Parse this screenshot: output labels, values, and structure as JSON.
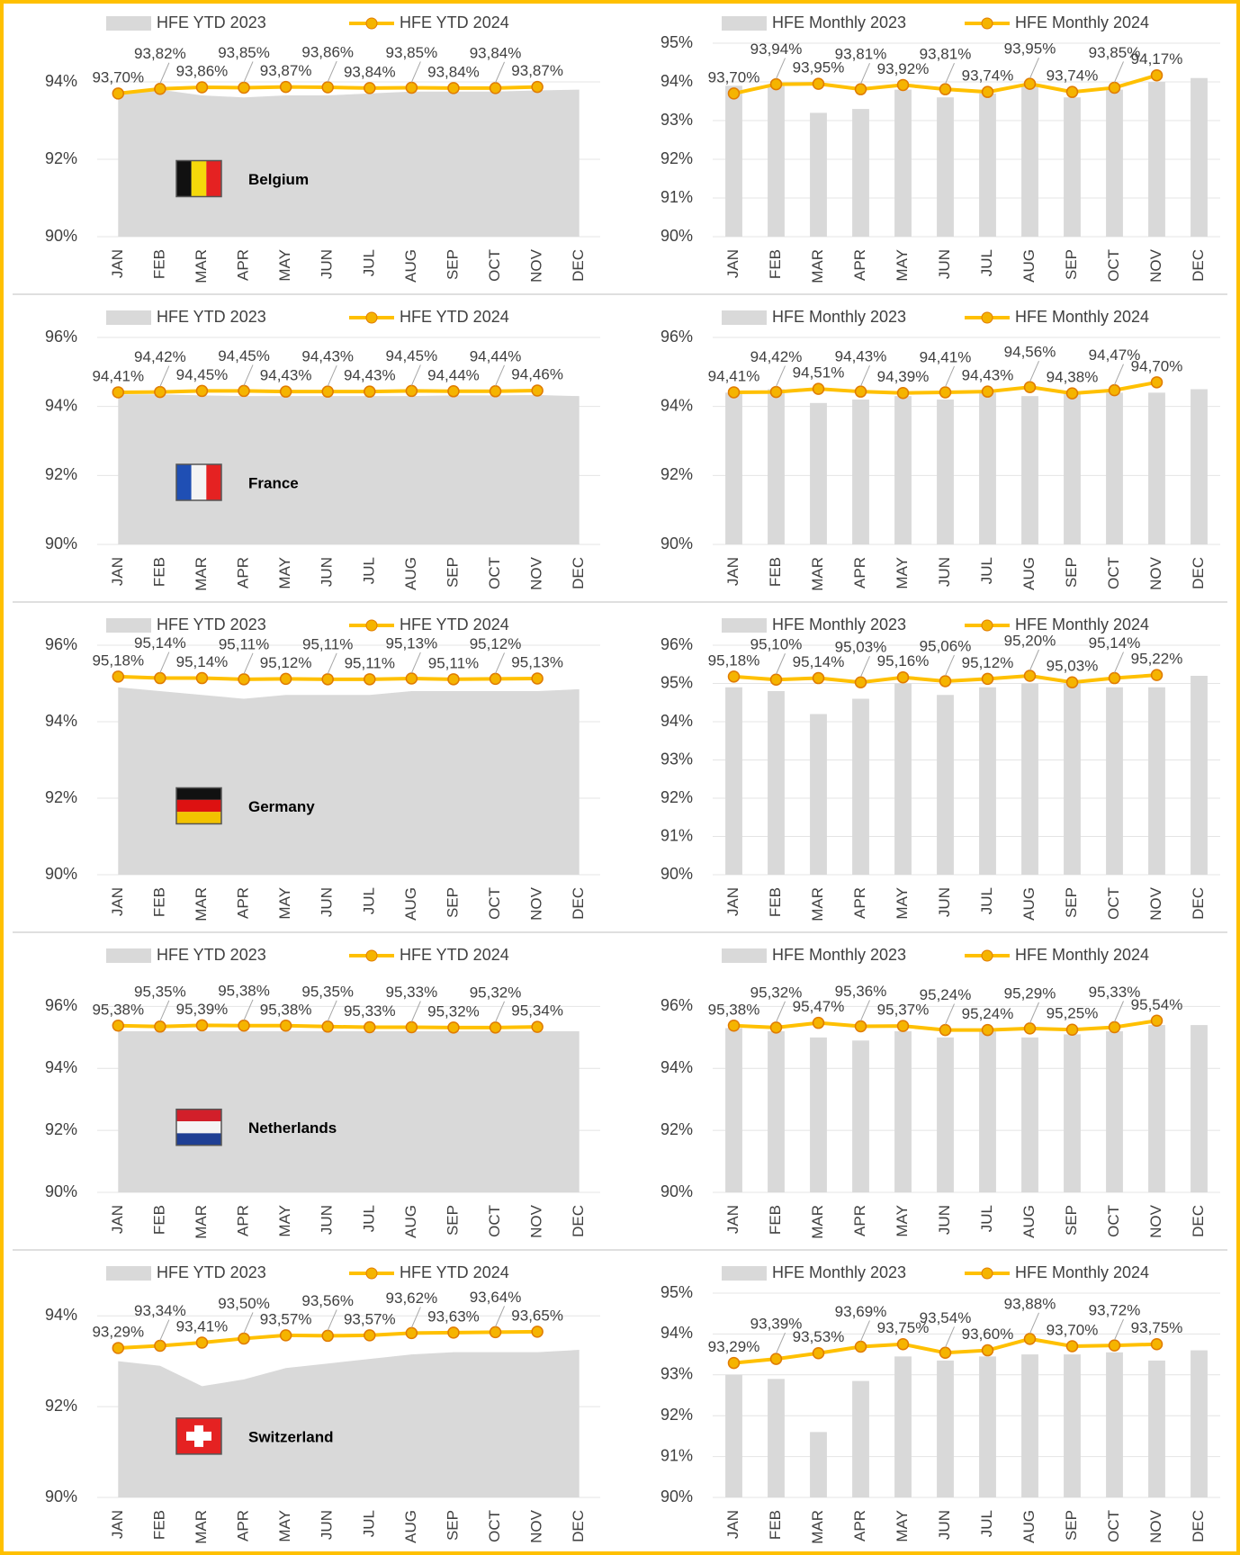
{
  "chart_data": [
    {
      "type": "combo",
      "annotation": "Belgium",
      "categories": [
        "JAN",
        "FEB",
        "MAR",
        "APR",
        "MAY",
        "JUN",
        "JUL",
        "AUG",
        "SEP",
        "OCT",
        "NOV",
        "DEC"
      ],
      "series": [
        {
          "name": "HFE YTD 2023",
          "type": "area",
          "color": "#d9d9d9",
          "values": [
            93.7,
            93.8,
            93.65,
            93.6,
            93.65,
            93.65,
            93.7,
            93.75,
            93.75,
            93.75,
            93.78,
            93.8
          ]
        },
        {
          "name": "HFE YTD 2024",
          "type": "line",
          "color": "#ffc000",
          "values": [
            93.7,
            93.82,
            93.86,
            93.85,
            93.87,
            93.86,
            93.84,
            93.85,
            93.84,
            93.84,
            93.87,
            null
          ],
          "value_labels": [
            "93,70%",
            "93,82%",
            "93,86%",
            "93,85%",
            "93,87%",
            "93,86%",
            "93,84%",
            "93,85%",
            "93,84%",
            "93,84%",
            "93,87%",
            null
          ]
        }
      ],
      "ylim": [
        90,
        95
      ],
      "yticks": [
        {
          "value": 90,
          "label": "90%"
        },
        {
          "value": 92,
          "label": "92%"
        },
        {
          "value": 94,
          "label": "94%"
        }
      ],
      "grid": true
    },
    {
      "type": "combo",
      "categories": [
        "JAN",
        "FEB",
        "MAR",
        "APR",
        "MAY",
        "JUN",
        "JUL",
        "AUG",
        "SEP",
        "OCT",
        "NOV",
        "DEC"
      ],
      "series": [
        {
          "name": "HFE Monthly 2023",
          "type": "bar",
          "color": "#d9d9d9",
          "values": [
            93.9,
            93.9,
            93.2,
            93.3,
            93.8,
            93.6,
            93.7,
            93.9,
            93.6,
            93.8,
            94.0,
            94.1
          ]
        },
        {
          "name": "HFE Monthly 2024",
          "type": "line",
          "color": "#ffc000",
          "values": [
            93.7,
            93.94,
            93.95,
            93.81,
            93.92,
            93.81,
            93.74,
            93.95,
            93.74,
            93.85,
            94.17,
            null
          ],
          "value_labels": [
            "93,70%",
            "93,94%",
            "93,95%",
            "93,81%",
            "93,92%",
            "93,81%",
            "93,74%",
            "93,95%",
            "93,74%",
            "93,85%",
            "94,17%",
            null
          ]
        }
      ],
      "ylim": [
        90,
        95
      ],
      "yticks": [
        {
          "value": 90,
          "label": "90%"
        },
        {
          "value": 91,
          "label": "91%"
        },
        {
          "value": 92,
          "label": "92%"
        },
        {
          "value": 93,
          "label": "93%"
        },
        {
          "value": 94,
          "label": "94%"
        },
        {
          "value": 95,
          "label": "95%"
        }
      ],
      "grid": true
    },
    {
      "type": "combo",
      "annotation": "France",
      "categories": [
        "JAN",
        "FEB",
        "MAR",
        "APR",
        "MAY",
        "JUN",
        "JUL",
        "AUG",
        "SEP",
        "OCT",
        "NOV",
        "DEC"
      ],
      "series": [
        {
          "name": "HFE YTD 2023",
          "type": "area",
          "color": "#d9d9d9",
          "values": [
            94.35,
            94.35,
            94.32,
            94.3,
            94.3,
            94.3,
            94.3,
            94.3,
            94.32,
            94.32,
            94.33,
            94.3
          ]
        },
        {
          "name": "HFE YTD 2024",
          "type": "line",
          "color": "#ffc000",
          "values": [
            94.41,
            94.42,
            94.45,
            94.45,
            94.43,
            94.43,
            94.43,
            94.45,
            94.44,
            94.44,
            94.46,
            null
          ],
          "value_labels": [
            "94,41%",
            "94,42%",
            "94,45%",
            "94,45%",
            "94,43%",
            "94,43%",
            "94,43%",
            "94,45%",
            "94,44%",
            "94,44%",
            "94,46%",
            null
          ]
        }
      ],
      "ylim": [
        90,
        96
      ],
      "yticks": [
        {
          "value": 90,
          "label": "90%"
        },
        {
          "value": 92,
          "label": "92%"
        },
        {
          "value": 94,
          "label": "94%"
        },
        {
          "value": 96,
          "label": "96%"
        }
      ],
      "grid": true
    },
    {
      "type": "combo",
      "categories": [
        "JAN",
        "FEB",
        "MAR",
        "APR",
        "MAY",
        "JUN",
        "JUL",
        "AUG",
        "SEP",
        "OCT",
        "NOV",
        "DEC"
      ],
      "series": [
        {
          "name": "HFE Monthly 2023",
          "type": "bar",
          "color": "#d9d9d9",
          "values": [
            94.4,
            94.5,
            94.1,
            94.2,
            94.3,
            94.2,
            94.4,
            94.3,
            94.4,
            94.4,
            94.4,
            94.5
          ]
        },
        {
          "name": "HFE Monthly 2024",
          "type": "line",
          "color": "#ffc000",
          "values": [
            94.41,
            94.42,
            94.51,
            94.43,
            94.39,
            94.41,
            94.43,
            94.56,
            94.38,
            94.47,
            94.7,
            null
          ],
          "value_labels": [
            "94,41%",
            "94,42%",
            "94,51%",
            "94,43%",
            "94,39%",
            "94,41%",
            "94,43%",
            "94,56%",
            "94,38%",
            "94,47%",
            "94,70%",
            null
          ]
        }
      ],
      "ylim": [
        90,
        96
      ],
      "yticks": [
        {
          "value": 90,
          "label": "90%"
        },
        {
          "value": 92,
          "label": "92%"
        },
        {
          "value": 94,
          "label": "94%"
        },
        {
          "value": 96,
          "label": "96%"
        }
      ],
      "grid": true
    },
    {
      "type": "combo",
      "annotation": "Germany",
      "categories": [
        "JAN",
        "FEB",
        "MAR",
        "APR",
        "MAY",
        "JUN",
        "JUL",
        "AUG",
        "SEP",
        "OCT",
        "NOV",
        "DEC"
      ],
      "series": [
        {
          "name": "HFE YTD 2023",
          "type": "area",
          "color": "#d9d9d9",
          "values": [
            94.9,
            94.8,
            94.7,
            94.6,
            94.7,
            94.7,
            94.7,
            94.8,
            94.8,
            94.8,
            94.8,
            94.85
          ]
        },
        {
          "name": "HFE YTD 2024",
          "type": "line",
          "color": "#ffc000",
          "values": [
            95.18,
            95.14,
            95.14,
            95.11,
            95.12,
            95.11,
            95.11,
            95.13,
            95.11,
            95.12,
            95.13,
            null
          ],
          "value_labels": [
            "95,18%",
            "95,14%",
            "95,14%",
            "95,11%",
            "95,12%",
            "95,11%",
            "95,11%",
            "95,13%",
            "95,11%",
            "95,12%",
            "95,13%",
            null
          ]
        }
      ],
      "ylim": [
        90,
        96
      ],
      "yticks": [
        {
          "value": 90,
          "label": "90%"
        },
        {
          "value": 92,
          "label": "92%"
        },
        {
          "value": 94,
          "label": "94%"
        },
        {
          "value": 96,
          "label": "96%"
        }
      ],
      "grid": true
    },
    {
      "type": "combo",
      "categories": [
        "JAN",
        "FEB",
        "MAR",
        "APR",
        "MAY",
        "JUN",
        "JUL",
        "AUG",
        "SEP",
        "OCT",
        "NOV",
        "DEC"
      ],
      "series": [
        {
          "name": "HFE Monthly 2023",
          "type": "bar",
          "color": "#d9d9d9",
          "values": [
            94.9,
            94.8,
            94.2,
            94.6,
            95.0,
            94.7,
            94.9,
            95.0,
            95.0,
            94.9,
            94.9,
            95.2
          ]
        },
        {
          "name": "HFE Monthly 2024",
          "type": "line",
          "color": "#ffc000",
          "values": [
            95.18,
            95.1,
            95.14,
            95.03,
            95.16,
            95.06,
            95.12,
            95.2,
            95.03,
            95.14,
            95.22,
            null
          ],
          "value_labels": [
            "95,18%",
            "95,10%",
            "95,14%",
            "95,03%",
            "95,16%",
            "95,06%",
            "95,12%",
            "95,20%",
            "95,03%",
            "95,14%",
            "95,22%",
            null
          ]
        }
      ],
      "ylim": [
        90,
        96
      ],
      "yticks": [
        {
          "value": 90,
          "label": "90%"
        },
        {
          "value": 91,
          "label": "91%"
        },
        {
          "value": 92,
          "label": "92%"
        },
        {
          "value": 93,
          "label": "93%"
        },
        {
          "value": 94,
          "label": "94%"
        },
        {
          "value": 95,
          "label": "95%"
        },
        {
          "value": 96,
          "label": "96%"
        }
      ],
      "grid": true
    },
    {
      "type": "combo",
      "annotation": "Netherlands",
      "categories": [
        "JAN",
        "FEB",
        "MAR",
        "APR",
        "MAY",
        "JUN",
        "JUL",
        "AUG",
        "SEP",
        "OCT",
        "NOV",
        "DEC"
      ],
      "series": [
        {
          "name": "HFE YTD 2023",
          "type": "area",
          "color": "#d9d9d9",
          "values": [
            95.2,
            95.2,
            95.2,
            95.2,
            95.2,
            95.2,
            95.2,
            95.2,
            95.2,
            95.2,
            95.2,
            95.2
          ]
        },
        {
          "name": "HFE YTD 2024",
          "type": "line",
          "color": "#ffc000",
          "values": [
            95.38,
            95.35,
            95.39,
            95.38,
            95.38,
            95.35,
            95.33,
            95.33,
            95.32,
            95.32,
            95.34,
            null
          ],
          "value_labels": [
            "95,38%",
            "95,35%",
            "95,39%",
            "95,38%",
            "95,38%",
            "95,35%",
            "95,33%",
            "95,33%",
            "95,32%",
            "95,32%",
            "95,34%",
            null
          ]
        }
      ],
      "ylim": [
        90,
        97
      ],
      "yticks": [
        {
          "value": 90,
          "label": "90%"
        },
        {
          "value": 92,
          "label": "92%"
        },
        {
          "value": 94,
          "label": "94%"
        },
        {
          "value": 96,
          "label": "96%"
        }
      ],
      "grid": true
    },
    {
      "type": "combo",
      "categories": [
        "JAN",
        "FEB",
        "MAR",
        "APR",
        "MAY",
        "JUN",
        "JUL",
        "AUG",
        "SEP",
        "OCT",
        "NOV",
        "DEC"
      ],
      "series": [
        {
          "name": "HFE Monthly 2023",
          "type": "bar",
          "color": "#d9d9d9",
          "values": [
            95.3,
            95.2,
            95.0,
            94.9,
            95.2,
            95.0,
            95.2,
            95.0,
            95.1,
            95.2,
            95.4,
            95.4
          ]
        },
        {
          "name": "HFE Monthly 2024",
          "type": "line",
          "color": "#ffc000",
          "values": [
            95.38,
            95.32,
            95.47,
            95.36,
            95.37,
            95.24,
            95.24,
            95.29,
            95.25,
            95.33,
            95.54,
            null
          ],
          "value_labels": [
            "95,38%",
            "95,32%",
            "95,47%",
            "95,36%",
            "95,37%",
            "95,24%",
            "95,24%",
            "95,29%",
            "95,25%",
            "95,33%",
            "95,54%",
            null
          ]
        }
      ],
      "ylim": [
        90,
        97
      ],
      "yticks": [
        {
          "value": 90,
          "label": "90%"
        },
        {
          "value": 92,
          "label": "92%"
        },
        {
          "value": 94,
          "label": "94%"
        },
        {
          "value": 96,
          "label": "96%"
        }
      ],
      "grid": true
    },
    {
      "type": "combo",
      "annotation": "Switzerland",
      "categories": [
        "JAN",
        "FEB",
        "MAR",
        "APR",
        "MAY",
        "JUN",
        "JUL",
        "AUG",
        "SEP",
        "OCT",
        "NOV",
        "DEC"
      ],
      "series": [
        {
          "name": "HFE YTD 2023",
          "type": "area",
          "color": "#d9d9d9",
          "values": [
            93.0,
            92.9,
            92.45,
            92.6,
            92.85,
            92.95,
            93.05,
            93.15,
            93.2,
            93.2,
            93.2,
            93.25
          ]
        },
        {
          "name": "HFE YTD 2024",
          "type": "line",
          "color": "#ffc000",
          "values": [
            93.29,
            93.34,
            93.41,
            93.5,
            93.57,
            93.56,
            93.57,
            93.62,
            93.63,
            93.64,
            93.65,
            null
          ],
          "value_labels": [
            "93,29%",
            "93,34%",
            "93,41%",
            "93,50%",
            "93,57%",
            "93,56%",
            "93,57%",
            "93,62%",
            "93,63%",
            "93,64%",
            "93,65%",
            null
          ]
        }
      ],
      "ylim": [
        90,
        94.5
      ],
      "yticks": [
        {
          "value": 90,
          "label": "90%"
        },
        {
          "value": 92,
          "label": "92%"
        },
        {
          "value": 94,
          "label": "94%"
        }
      ],
      "grid": true
    },
    {
      "type": "combo",
      "categories": [
        "JAN",
        "FEB",
        "MAR",
        "APR",
        "MAY",
        "JUN",
        "JUL",
        "AUG",
        "SEP",
        "OCT",
        "NOV",
        "DEC"
      ],
      "series": [
        {
          "name": "HFE Monthly 2023",
          "type": "bar",
          "color": "#d9d9d9",
          "values": [
            93.0,
            92.9,
            91.6,
            92.85,
            93.45,
            93.35,
            93.45,
            93.5,
            93.5,
            93.55,
            93.35,
            93.6
          ]
        },
        {
          "name": "HFE Monthly 2024",
          "type": "line",
          "color": "#ffc000",
          "values": [
            93.29,
            93.39,
            93.53,
            93.69,
            93.75,
            93.54,
            93.6,
            93.88,
            93.7,
            93.72,
            93.75,
            null
          ],
          "value_labels": [
            "93,29%",
            "93,39%",
            "93,53%",
            "93,69%",
            "93,75%",
            "93,54%",
            "93,60%",
            "93,88%",
            "93,70%",
            "93,72%",
            "93,75%",
            null
          ]
        }
      ],
      "ylim": [
        90,
        95
      ],
      "yticks": [
        {
          "value": 90,
          "label": "90%"
        },
        {
          "value": 91,
          "label": "91%"
        },
        {
          "value": 92,
          "label": "92%"
        },
        {
          "value": 93,
          "label": "93%"
        },
        {
          "value": 94,
          "label": "94%"
        },
        {
          "value": 95,
          "label": "95%"
        }
      ],
      "grid": true
    }
  ]
}
